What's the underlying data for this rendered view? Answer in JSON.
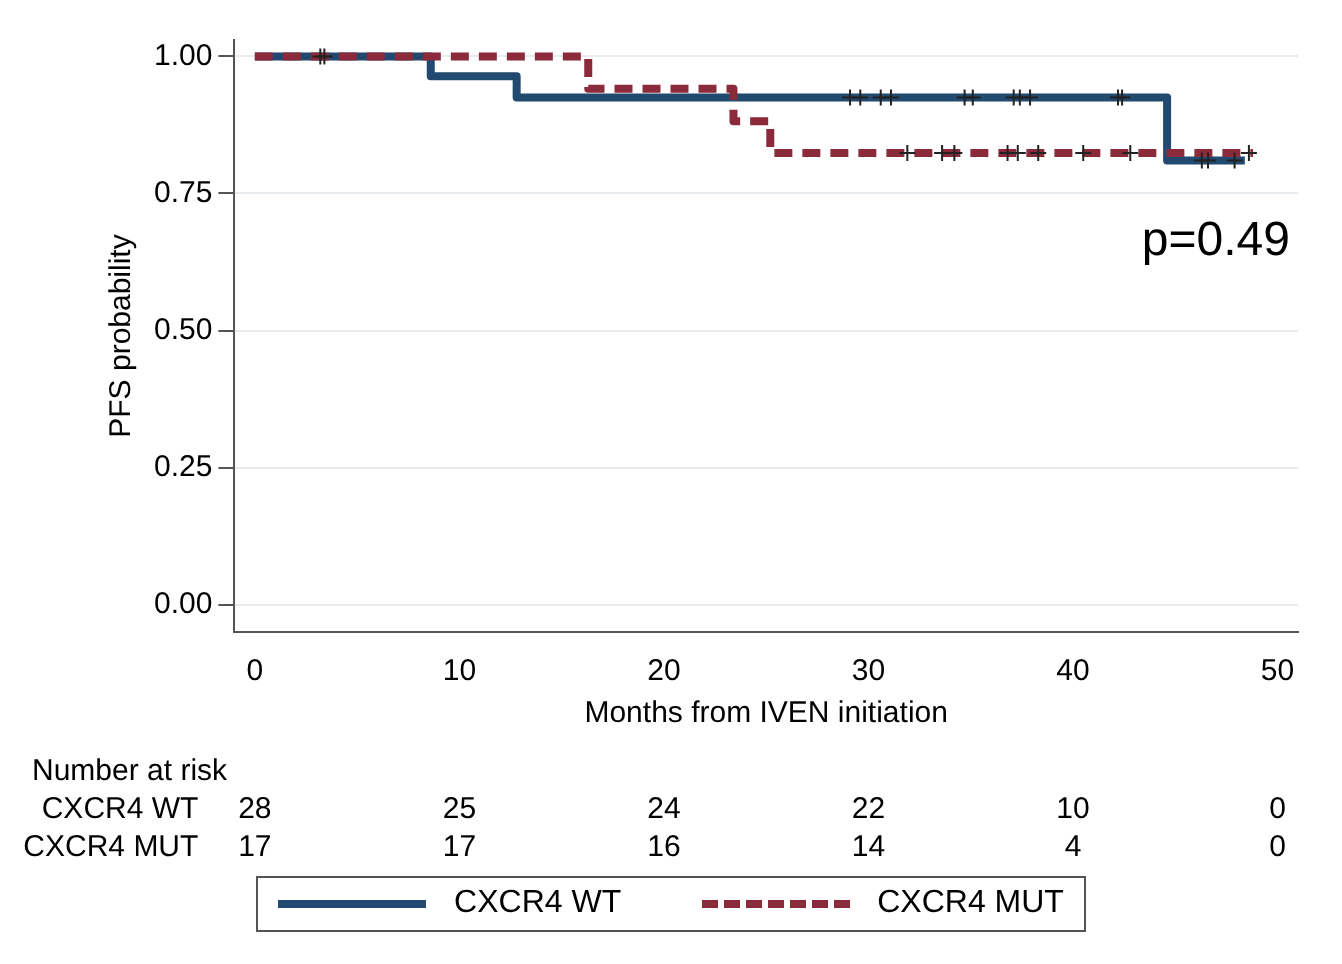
{
  "chart_data": {
    "type": "step",
    "xlabel": "Months from IVEN initiation",
    "ylabel": "PFS probability",
    "xlim": [
      -1,
      51
    ],
    "xticks": [
      0,
      10,
      20,
      30,
      40,
      50
    ],
    "ylim": [
      -0.05,
      1.03
    ],
    "yticks": [
      {
        "value": 0,
        "label": "0.00"
      },
      {
        "value": 0.25,
        "label": "0.25"
      },
      {
        "value": 0.5,
        "label": "0.50"
      },
      {
        "value": 0.75,
        "label": "0.75"
      },
      {
        "value": 1,
        "label": "1.00"
      }
    ],
    "grid": "y",
    "legend": "bottom",
    "marker": "none",
    "series": [
      {
        "name": "CXCR4 WT",
        "color": "#22496f",
        "line_style": "solid",
        "x": [
          0,
          8.6,
          12.8,
          44.6,
          48.4
        ],
        "values": [
          1,
          0.964,
          0.925,
          0.81,
          0.81
        ]
      },
      {
        "name": "CXCR4 MUT",
        "color": "#8a2a3b",
        "line_style": "dashed",
        "x": [
          0,
          16.3,
          23.4,
          25.2,
          48.8
        ],
        "values": [
          1,
          0.941,
          0.882,
          0.824,
          0.824
        ]
      },
      {
        "type": "scatter",
        "marker": "cross",
        "color": "#222222",
        "x": [
          3.2,
          3.4,
          29.1,
          29.6,
          30.6,
          31.1,
          34.7,
          35.1,
          37.1,
          37.4,
          37.9,
          42.2,
          42.4,
          46.3,
          46.6,
          47.9
        ],
        "values": [
          1,
          1,
          0.925,
          0.925,
          0.925,
          0.925,
          0.925,
          0.925,
          0.925,
          0.925,
          0.925,
          0.925,
          0.925,
          0.81,
          0.81,
          0.81
        ]
      },
      {
        "type": "scatter",
        "marker": "cross",
        "color": "#222222",
        "x": [
          31.9,
          33.6,
          34.2,
          36.8,
          37.3,
          38.3,
          40.5,
          42.8,
          48.6
        ],
        "values": [
          0.824,
          0.824,
          0.824,
          0.824,
          0.824,
          0.824,
          0.824,
          0.824,
          0.824
        ]
      }
    ],
    "annotations": [
      "p=0.49",
      "Number at risk",
      "CXCR4 WT",
      "28",
      "25",
      "24",
      "22",
      "10",
      "0",
      "CXCR4 MUT",
      "17",
      "17",
      "16",
      "14",
      "4",
      "0"
    ]
  }
}
